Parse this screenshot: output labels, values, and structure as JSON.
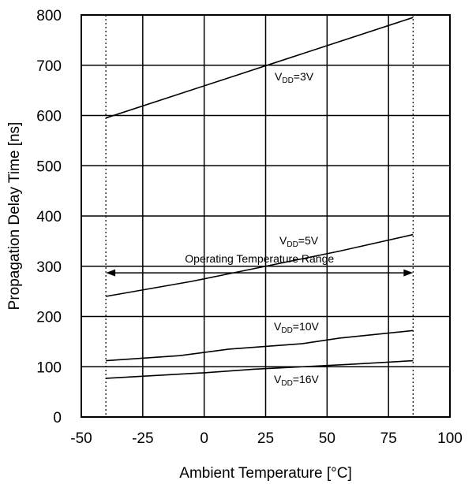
{
  "chart_data": {
    "type": "line",
    "xlabel": "Ambient Temperature [°C]",
    "ylabel": "Propagation Delay Time [ns]",
    "xlim": [
      -50,
      100
    ],
    "ylim": [
      0,
      800
    ],
    "xticks": [
      -50,
      -25,
      0,
      25,
      50,
      75,
      100
    ],
    "yticks": [
      0,
      100,
      200,
      300,
      400,
      500,
      600,
      700,
      800
    ],
    "grid": true,
    "series": [
      {
        "name": "VDD=3V",
        "label_parts": {
          "prefix": "V",
          "sub": "DD",
          "suffix": "=3V"
        },
        "x": [
          -40,
          85
        ],
        "y": [
          595,
          795
        ]
      },
      {
        "name": "VDD=5V",
        "label_parts": {
          "prefix": "V",
          "sub": "DD",
          "suffix": "=5V"
        },
        "x": [
          -40,
          -5,
          25,
          55,
          85
        ],
        "y": [
          240,
          270,
          300,
          330,
          363
        ]
      },
      {
        "name": "VDD=10V",
        "label_parts": {
          "prefix": "V",
          "sub": "DD",
          "suffix": "=10V"
        },
        "x": [
          -40,
          -10,
          10,
          40,
          55,
          85
        ],
        "y": [
          112,
          122,
          135,
          146,
          157,
          172
        ]
      },
      {
        "name": "VDD=16V",
        "label_parts": {
          "prefix": "V",
          "sub": "DD",
          "suffix": "=16V"
        },
        "x": [
          -40,
          0,
          20,
          40,
          60,
          85
        ],
        "y": [
          77,
          88,
          95,
          100,
          105,
          112
        ]
      }
    ],
    "reference_lines": {
      "x": [
        -40,
        85
      ]
    },
    "annotations": [
      {
        "text": "Operating Temperature Range",
        "x_range": [
          -40,
          85
        ],
        "y": 345
      }
    ]
  }
}
